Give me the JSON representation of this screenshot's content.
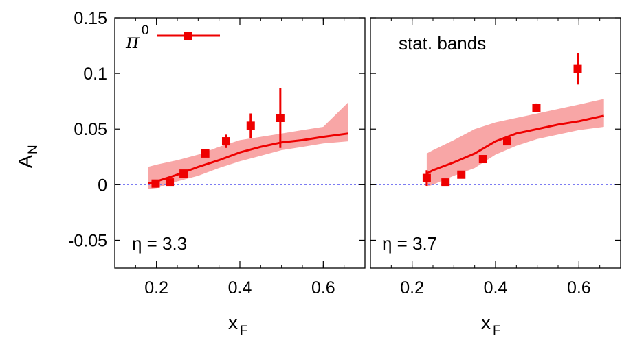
{
  "chart_data": [
    {
      "type": "scatter",
      "panel": "left",
      "xlabel": "x",
      "xlabel_sub": "F",
      "ylabel": "A",
      "ylabel_sub": "N",
      "xlim": [
        0.1,
        0.7
      ],
      "ylim": [
        -0.075,
        0.15
      ],
      "xticks": [
        0.2,
        0.4,
        0.6
      ],
      "xtick_labels": [
        "0.2",
        "0.4",
        "0.6"
      ],
      "yticks": [
        -0.05,
        0,
        0.05,
        0.1,
        0.15
      ],
      "ytick_labels": [
        "-0.05",
        "0",
        "0.05",
        "0.1",
        "0.15"
      ],
      "annotation": "η = 3.3",
      "legend": {
        "symbol": "π",
        "superscript": "0",
        "position": "top-left"
      },
      "zero_line": 0,
      "points": [
        {
          "x": 0.198,
          "y": 0.001,
          "err": 0.003
        },
        {
          "x": 0.232,
          "y": 0.002,
          "err": 0.003
        },
        {
          "x": 0.265,
          "y": 0.01,
          "err": 0.003
        },
        {
          "x": 0.317,
          "y": 0.028,
          "err": 0.003
        },
        {
          "x": 0.367,
          "y": 0.039,
          "err": 0.006
        },
        {
          "x": 0.426,
          "y": 0.053,
          "err": 0.011
        },
        {
          "x": 0.497,
          "y": 0.06,
          "err": 0.027
        }
      ],
      "curve": {
        "x": [
          0.18,
          0.2,
          0.25,
          0.3,
          0.35,
          0.4,
          0.45,
          0.5,
          0.55,
          0.6,
          0.66
        ],
        "y": [
          0.001,
          0.003,
          0.009,
          0.016,
          0.022,
          0.029,
          0.034,
          0.038,
          0.04,
          0.043,
          0.046
        ]
      },
      "band": {
        "x": [
          0.18,
          0.2,
          0.25,
          0.3,
          0.35,
          0.4,
          0.45,
          0.5,
          0.55,
          0.6,
          0.66
        ],
        "lower": [
          -0.004,
          -0.003,
          0.003,
          0.008,
          0.015,
          0.021,
          0.026,
          0.031,
          0.034,
          0.037,
          0.039
        ],
        "upper": [
          0.016,
          0.018,
          0.022,
          0.027,
          0.034,
          0.04,
          0.043,
          0.046,
          0.049,
          0.052,
          0.074
        ]
      }
    },
    {
      "type": "scatter",
      "panel": "right",
      "xlabel": "x",
      "xlabel_sub": "F",
      "xlim": [
        0.1,
        0.7
      ],
      "ylim": [
        -0.075,
        0.15
      ],
      "xticks": [
        0.2,
        0.4,
        0.6
      ],
      "xtick_labels": [
        "0.2",
        "0.4",
        "0.6"
      ],
      "yticks": [
        -0.05,
        0,
        0.05,
        0.1,
        0.15
      ],
      "annotation": "η = 3.7",
      "label": "stat. bands",
      "zero_line": 0,
      "points": [
        {
          "x": 0.235,
          "y": 0.006,
          "err": 0.007
        },
        {
          "x": 0.28,
          "y": 0.002,
          "err": 0.003
        },
        {
          "x": 0.318,
          "y": 0.009,
          "err": 0.003
        },
        {
          "x": 0.37,
          "y": 0.023,
          "err": 0.003
        },
        {
          "x": 0.428,
          "y": 0.039,
          "err": 0.003
        },
        {
          "x": 0.498,
          "y": 0.069,
          "err": 0.004
        },
        {
          "x": 0.597,
          "y": 0.104,
          "err": 0.014
        }
      ],
      "curve": {
        "x": [
          0.235,
          0.25,
          0.3,
          0.35,
          0.4,
          0.45,
          0.5,
          0.55,
          0.6,
          0.66
        ],
        "y": [
          0.01,
          0.013,
          0.02,
          0.028,
          0.039,
          0.046,
          0.05,
          0.054,
          0.057,
          0.062
        ]
      },
      "band": {
        "x": [
          0.235,
          0.25,
          0.3,
          0.35,
          0.4,
          0.45,
          0.5,
          0.55,
          0.6,
          0.66
        ],
        "lower": [
          -0.002,
          0.0,
          0.008,
          0.015,
          0.027,
          0.035,
          0.041,
          0.045,
          0.049,
          0.052
        ],
        "upper": [
          0.028,
          0.031,
          0.04,
          0.05,
          0.056,
          0.06,
          0.064,
          0.068,
          0.072,
          0.077
        ]
      }
    }
  ],
  "colors": {
    "marker": "#ee0000",
    "band": "#f8a6a6",
    "zero_line": "#6a6af0",
    "axes": "#000000"
  }
}
